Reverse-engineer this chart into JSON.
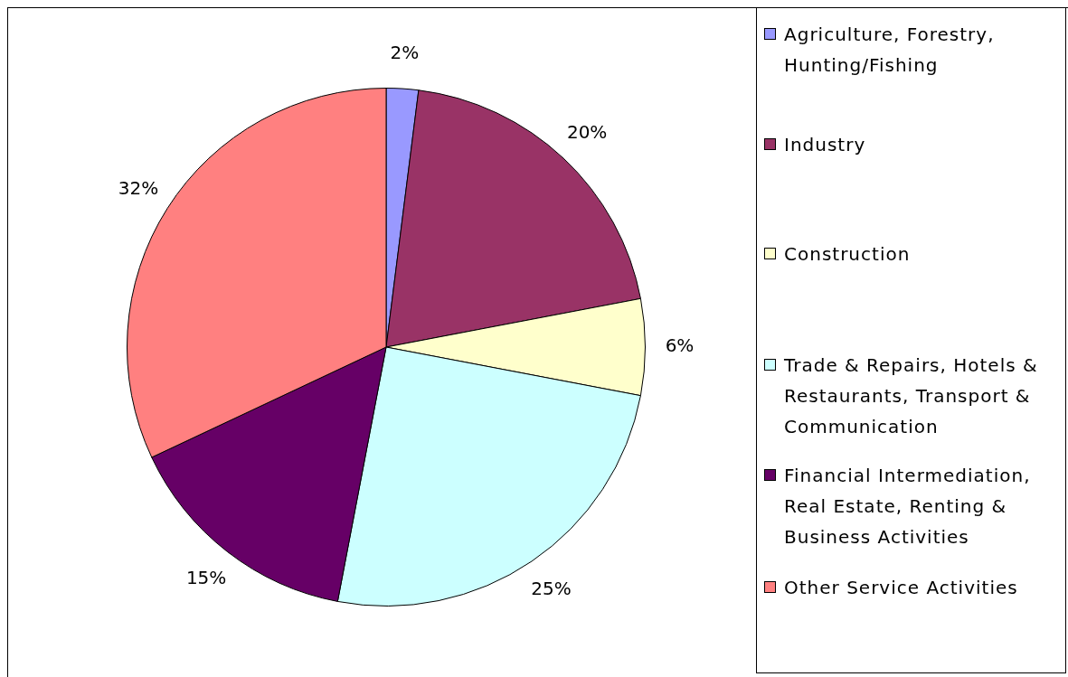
{
  "chart_data": {
    "type": "pie",
    "categories": [
      "Agriculture, Forestry, Hunting/Fishing",
      "Industry",
      "Construction",
      "Trade & Repairs, Hotels & Restaurants, Transport & Communication",
      "Financial Intermediation, Real Estate, Renting & Business Activities",
      "Other Service Activities"
    ],
    "values": [
      2,
      20,
      6,
      25,
      15,
      32
    ],
    "colors": [
      "#9999ff",
      "#993366",
      "#ffffcc",
      "#ccffff",
      "#660066",
      "#ff8080"
    ],
    "value_labels": [
      "2%",
      "20%",
      "6%",
      "25%",
      "15%",
      "32%"
    ],
    "legend": "right"
  }
}
